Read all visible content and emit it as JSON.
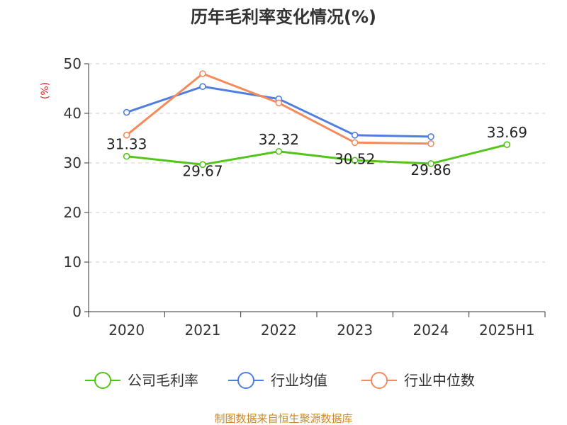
{
  "chart_data": {
    "type": "line",
    "title": "历年毛利率变化情况(%)",
    "ylabel": "(%)",
    "categories": [
      "2020",
      "2021",
      "2022",
      "2023",
      "2024",
      "2025H1"
    ],
    "ylim": [
      0,
      50
    ],
    "yticks": [
      "0",
      "10",
      "20",
      "30",
      "40",
      "50"
    ],
    "grid": true,
    "legend_position": "bottom",
    "series": [
      {
        "name": "公司毛利率",
        "color": "#52c41a",
        "values": [
          31.33,
          29.67,
          32.32,
          30.52,
          29.86,
          33.69
        ],
        "labels": [
          "31.33",
          "29.67",
          "32.32",
          "30.52",
          "29.86",
          "33.69"
        ]
      },
      {
        "name": "行业均值",
        "color": "#4e7fe0",
        "values": [
          40.2,
          45.4,
          42.9,
          35.6,
          35.3,
          null
        ]
      },
      {
        "name": "行业中位数",
        "color": "#f58b5b",
        "values": [
          35.6,
          48.0,
          42.1,
          34.1,
          33.9,
          null
        ]
      }
    ],
    "source": "制图数据来自恒生聚源数据库"
  }
}
